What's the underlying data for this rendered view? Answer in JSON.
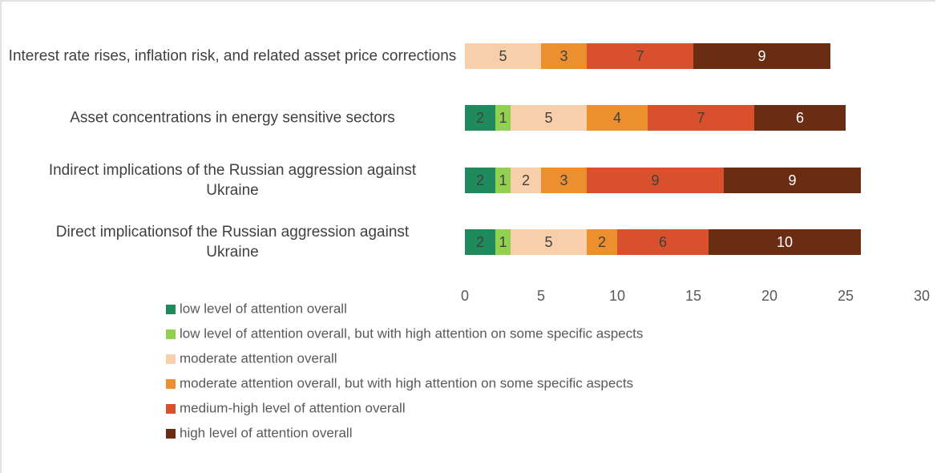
{
  "chart_data": {
    "type": "stacked_bar_horizontal",
    "categories": [
      "Interest rate rises, inflation risk, and related asset price corrections",
      "Asset concentrations in energy sensitive sectors",
      "Indirect implications of the Russian aggression against Ukraine",
      "Direct implicationsof the Russian aggression against Ukraine"
    ],
    "series": [
      {
        "name": "low level of attention overall",
        "color": "#1f8a5b",
        "values": [
          null,
          2,
          2,
          2
        ]
      },
      {
        "name": "low level of attention overall, but with high attention on some specific aspects",
        "color": "#92d050",
        "values": [
          null,
          1,
          1,
          1
        ]
      },
      {
        "name": "moderate attention overall",
        "color": "#f8cfab",
        "values": [
          5,
          5,
          2,
          5
        ]
      },
      {
        "name": "moderate attention overall, but with high attention on some specific aspects",
        "color": "#ec8f2f",
        "values": [
          3,
          4,
          3,
          2
        ]
      },
      {
        "name": "medium-high level of attention overall",
        "color": "#d9512c",
        "values": [
          7,
          7,
          9,
          6
        ]
      },
      {
        "name": "high level of attention overall",
        "color": "#6b2c14",
        "values": [
          9,
          6,
          9,
          10
        ]
      }
    ],
    "xlim": [
      0,
      30
    ],
    "xticks": [
      0,
      5,
      10,
      15,
      20,
      25,
      30
    ],
    "grid": false
  }
}
